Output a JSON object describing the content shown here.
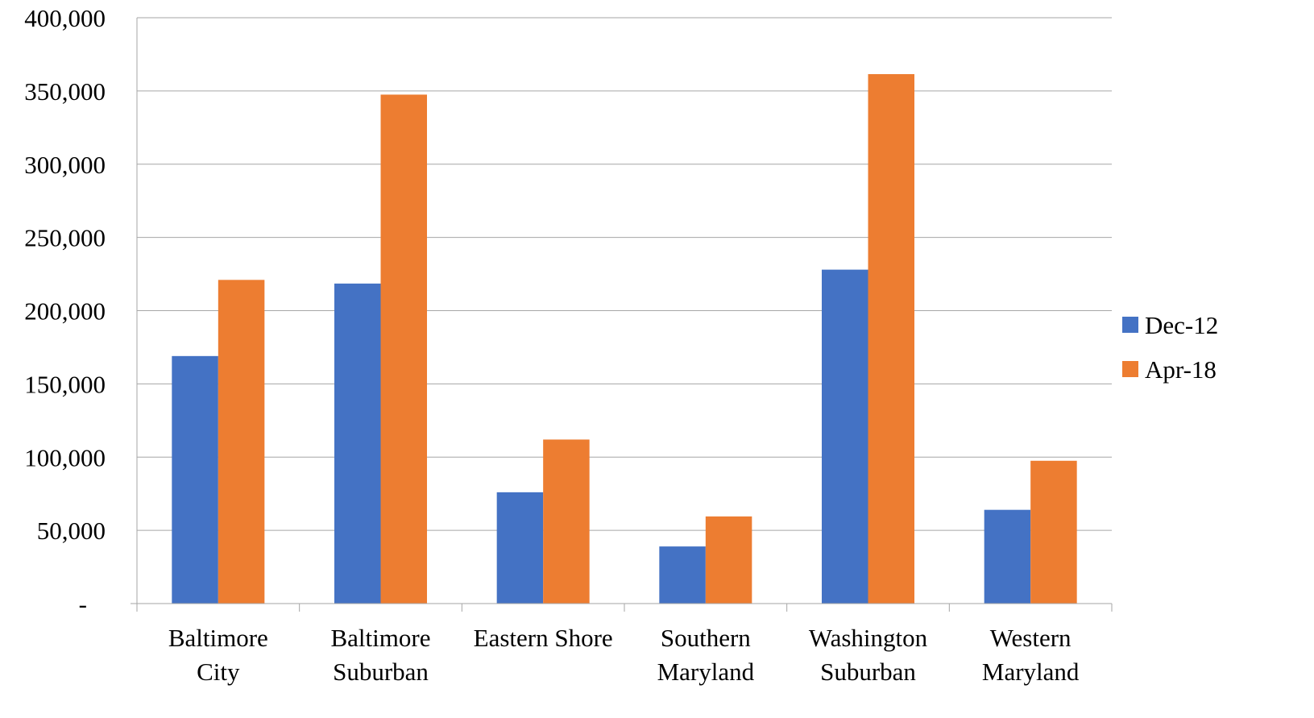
{
  "chart_data": {
    "type": "bar",
    "categories": [
      [
        "Baltimore",
        "City"
      ],
      [
        "Baltimore",
        "Suburban"
      ],
      [
        "Eastern Shore"
      ],
      [
        "Southern",
        "Maryland"
      ],
      [
        "Washington",
        "Suburban"
      ],
      [
        "Western",
        "Maryland"
      ]
    ],
    "series": [
      {
        "name": "Dec-12",
        "color": "#4472C4",
        "values": [
          169000,
          218500,
          76000,
          39000,
          228000,
          64000
        ]
      },
      {
        "name": "Apr-18",
        "color": "#ED7D31",
        "values": [
          221000,
          347500,
          112000,
          59500,
          361500,
          97500
        ]
      }
    ],
    "y_ticks": [
      {
        "value": 0,
        "label": "-"
      },
      {
        "value": 50000,
        "label": "50,000"
      },
      {
        "value": 100000,
        "label": "100,000"
      },
      {
        "value": 150000,
        "label": "150,000"
      },
      {
        "value": 200000,
        "label": "200,000"
      },
      {
        "value": 250000,
        "label": "250,000"
      },
      {
        "value": 300000,
        "label": "300,000"
      },
      {
        "value": 350000,
        "label": "350,000"
      },
      {
        "value": 400000,
        "label": "400,000"
      }
    ],
    "ylim": [
      0,
      400000
    ],
    "title": "",
    "xlabel": "",
    "ylabel": "",
    "grid": true,
    "legend_position": "right"
  }
}
